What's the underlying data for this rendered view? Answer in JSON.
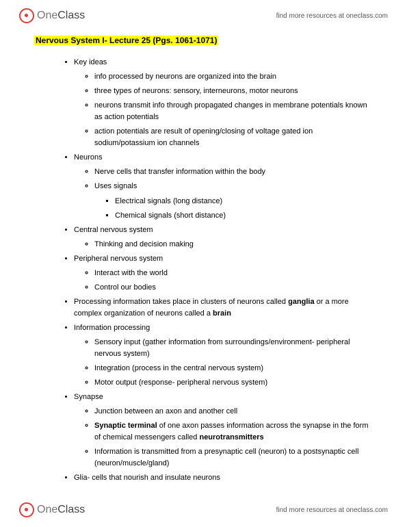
{
  "brand": {
    "one": "One",
    "class": "Class"
  },
  "headerLink": "find more resources at oneclass.com",
  "title": "Nervous System I- Lecture 25 (Pgs. 1061-1071)",
  "sections": {
    "keyIdeas": {
      "label": "Key ideas",
      "items": [
        "info processed by neurons are organized into the brain",
        "three types of neurons: sensory, interneurons, motor neurons",
        "neurons transmit info through propagated changes in membrane potentials known as action potentials",
        "action potentials are result of opening/closing of voltage gated ion sodium/potassium ion channels"
      ]
    },
    "neurons": {
      "label": "Neurons",
      "items": [
        "Nerve cells that transfer information within the body",
        "Uses signals"
      ],
      "signals": [
        "Electrical signals (long distance)",
        "Chemical signals (short distance)"
      ]
    },
    "cns": {
      "label": "Central nervous system",
      "items": [
        "Thinking and decision making"
      ]
    },
    "pns": {
      "label": "Peripheral nervous system",
      "items": [
        "Interact with the world",
        "Control our bodies"
      ]
    },
    "processing": {
      "prefix": "Processing information takes place in clusters of neurons called ",
      "bold1": "ganglia",
      "mid": " or a more complex organization of neurons called a ",
      "bold2": "brain"
    },
    "infoProc": {
      "label": "Information processing",
      "items": [
        "Sensory input (gather information from surroundings/environment- peripheral nervous system)",
        "Integration (process in the central nervous system)",
        "Motor output (response- peripheral nervous system)"
      ]
    },
    "synapse": {
      "label": "Synapse",
      "i0": "Junction between an axon and another cell",
      "i1": {
        "b1": "Synaptic terminal",
        "mid": " of one axon passes information across the synapse in the form of chemical messengers called ",
        "b2": "neurotransmitters"
      },
      "i2": "Information is transmitted from a presynaptic cell (neuron) to a postsynaptic cell (neuron/muscle/gland)"
    },
    "glia": "Glia- cells that nourish and insulate neurons"
  },
  "colors": {
    "highlight": "#ffff00",
    "text": "#000000",
    "brandRed": "#e53935"
  }
}
